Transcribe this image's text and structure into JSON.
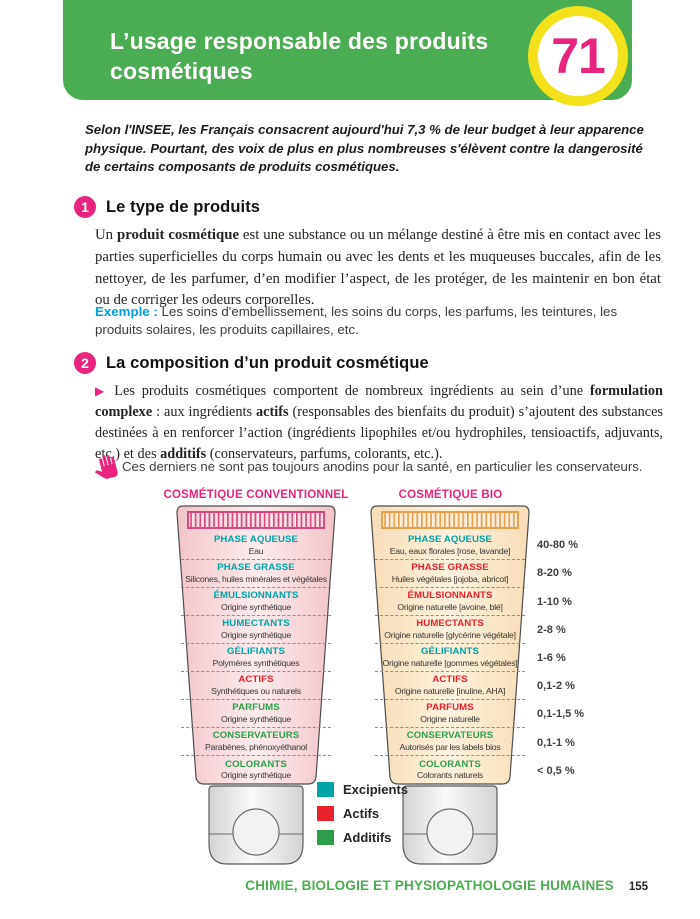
{
  "header": {
    "title": "L’usage responsable des produits cosmétiques",
    "chapter_number": "71"
  },
  "intro": "Selon l'INSEE, les Français consacrent aujourd'hui 7,3 % de leur budget à leur apparence physique. Pourtant, des voix de plus en plus nombreuses s'élèvent contre la dangerosité de certains composants de produits cosmétiques.",
  "sections": [
    {
      "number": "1",
      "title": "Le type de produits",
      "paragraph": [
        {
          "t": "Un "
        },
        {
          "t": "produit cosmétique",
          "b": true
        },
        {
          "t": " est une substance ou un mélange destiné à être mis en contact avec les parties superficielles du corps humain ou avec les dents et les muqueuses buccales, afin de les nettoyer, de les parfumer, d’en modifier l’aspect, de les protéger, de les maintenir en bon état ou de corriger les odeurs corporelles."
        }
      ],
      "example_label": "Exemple :",
      "example_text": " Les soins d'embellissement, les soins du corps, les parfums, les teintures, les produits solaires, les produits capillaires, etc."
    },
    {
      "number": "2",
      "title": "La composition d’un produit cosmétique",
      "bullet": "▶",
      "paragraph": [
        {
          "t": " Les produits cosmétiques comportent de nombreux ingrédients au sein d’une "
        },
        {
          "t": "formulation complexe",
          "b": true
        },
        {
          "t": " : aux ingrédients "
        },
        {
          "t": "actifs",
          "b": true
        },
        {
          "t": " (responsables des bienfaits du produit) s’ajoutent des substances destinées à en renforcer l’action (ingrédients lipophiles et/ou hydrophiles, tensioactifs, adjuvants, etc.) et des "
        },
        {
          "t": "additifs",
          "b": true
        },
        {
          "t": " (conservateurs, parfums, colorants, etc.)."
        }
      ],
      "note": "Ces derniers ne sont pas toujours anodins pour la santé, en particulier les conservateurs."
    }
  ],
  "diagram": {
    "tubes": [
      {
        "title": "COSMÉTIQUE CONVENTIONNEL",
        "rows": [
          {
            "label": "PHASE AQUEUSE",
            "sublabel": "Eau",
            "color": "teal"
          },
          {
            "label": "PHASE GRASSE",
            "sublabel": "Silicones, huiles minérales et végétales",
            "color": "teal"
          },
          {
            "label": "ÉMULSIONNANTS",
            "sublabel": "Origine synthétique",
            "color": "teal"
          },
          {
            "label": "HUMECTANTS",
            "sublabel": "Origine synthétique",
            "color": "teal"
          },
          {
            "label": "GÉLIFIANTS",
            "sublabel": "Polymères synthétiques",
            "color": "teal"
          },
          {
            "label": "ACTIFS",
            "sublabel": "Synthétiques ou naturels",
            "color": "red"
          },
          {
            "label": "PARFUMS",
            "sublabel": "Origine synthétique",
            "color": "green"
          },
          {
            "label": "CONSERVATEURS",
            "sublabel": "Parabènes, phénoxyéthanol",
            "color": "green"
          },
          {
            "label": "COLORANTS",
            "sublabel": "Origine synthétique",
            "color": "green"
          }
        ]
      },
      {
        "title": "COSMÉTIQUE BIO",
        "rows": [
          {
            "label": "PHASE AQUEUSE",
            "sublabel": "Eau, eaux florales [rose, lavande]",
            "color": "teal"
          },
          {
            "label": "PHASE GRASSE",
            "sublabel": "Huiles végétales [jojoba, abricot]",
            "color": "red"
          },
          {
            "label": "ÉMULSIONNANTS",
            "sublabel": "Origine naturelle [avoine, blé]",
            "color": "red"
          },
          {
            "label": "HUMECTANTS",
            "sublabel": "Origine naturelle [glycérine végétale]",
            "color": "red"
          },
          {
            "label": "GÉLIFIANTS",
            "sublabel": "Origine naturelle [gommes végétales]",
            "color": "teal"
          },
          {
            "label": "ACTIFS",
            "sublabel": "Origine naturelle [inuline, AHA]",
            "color": "red"
          },
          {
            "label": "PARFUMS",
            "sublabel": "Origine naturelle",
            "color": "red"
          },
          {
            "label": "CONSERVATEURS",
            "sublabel": "Autorisés par les labels bios",
            "color": "green"
          },
          {
            "label": "COLORANTS",
            "sublabel": "Colorants naturels",
            "color": "green"
          }
        ]
      }
    ],
    "percentages": [
      "40-80 %",
      "8-20 %",
      "1-10 %",
      "2-8 %",
      "1-6 %",
      "0,1-2 %",
      "0,1-1,5 %",
      "0,1-1 %",
      "< 0,5 %"
    ],
    "legend": [
      {
        "label": "Excipients",
        "color": "teal"
      },
      {
        "label": "Actifs",
        "color": "red"
      },
      {
        "label": "Additifs",
        "color": "green"
      }
    ]
  },
  "footer": {
    "subject": "CHIMIE, BIOLOGIE ET PHYSIOPATHOLOGIE HUMAINES",
    "page": "155"
  },
  "colors": {
    "header_green": "#4aad52",
    "magenta": "#e8247e",
    "badge_yellow": "#f3e11c",
    "excipients_teal": "#00a3a6",
    "actifs_red": "#e9222b",
    "additifs_green": "#2f9e4b",
    "example_blue": "#009fe0"
  }
}
